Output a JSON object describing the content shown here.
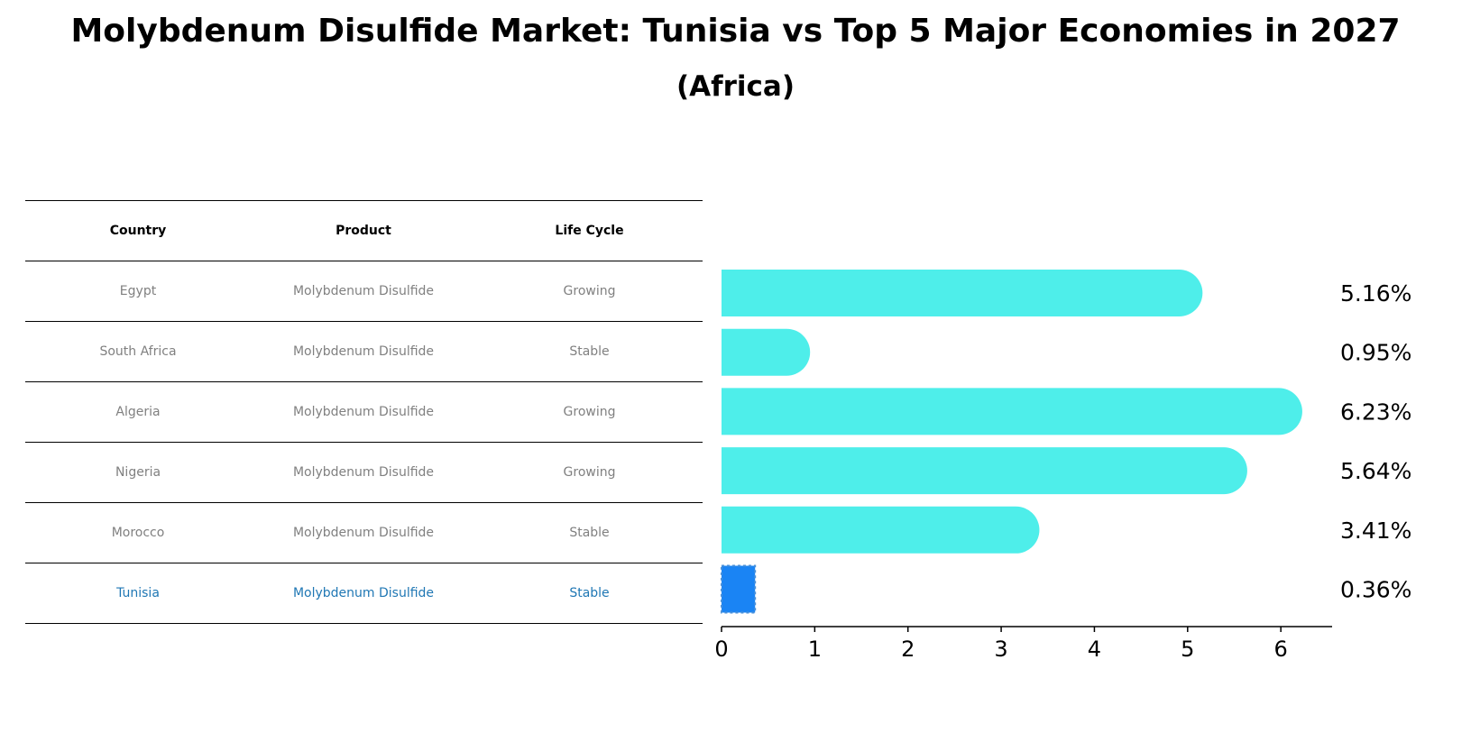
{
  "title": "Molybdenum Disulfide Market: Tunisia vs Top 5 Major Economies in 2027",
  "subtitle": "(Africa)",
  "table": {
    "headers": [
      "Country",
      "Product",
      "Life Cycle"
    ],
    "rows": [
      [
        "Egypt",
        "Molybdenum Disulfide",
        "Growing"
      ],
      [
        "South Africa",
        "Molybdenum Disulfide",
        "Stable"
      ],
      [
        "Algeria",
        "Molybdenum Disulfide",
        "Growing"
      ],
      [
        "Nigeria",
        "Molybdenum Disulfide",
        "Growing"
      ],
      [
        "Morocco",
        "Molybdenum Disulfide",
        "Stable"
      ],
      [
        "Tunisia",
        "Molybdenum Disulfide",
        "Stable"
      ]
    ],
    "highlight_row": 5,
    "highlight_color": "#1f77b4",
    "text_color": "#808080"
  },
  "chart_data": {
    "type": "bar",
    "orientation": "horizontal",
    "categories": [
      "Egypt",
      "South Africa",
      "Algeria",
      "Nigeria",
      "Morocco",
      "Tunisia"
    ],
    "values": [
      5.16,
      0.95,
      6.23,
      5.64,
      3.41,
      0.36
    ],
    "value_labels": [
      "5.16%",
      "0.95%",
      "6.23%",
      "5.64%",
      "3.41%",
      "0.36%"
    ],
    "xlim": [
      0,
      6.55
    ],
    "xticks": [
      "0",
      "1",
      "2",
      "3",
      "4",
      "5",
      "6"
    ],
    "bar_color": "#4eeeea",
    "highlight_color": "#1a84f4",
    "highlight_index": 5,
    "grid": false
  }
}
